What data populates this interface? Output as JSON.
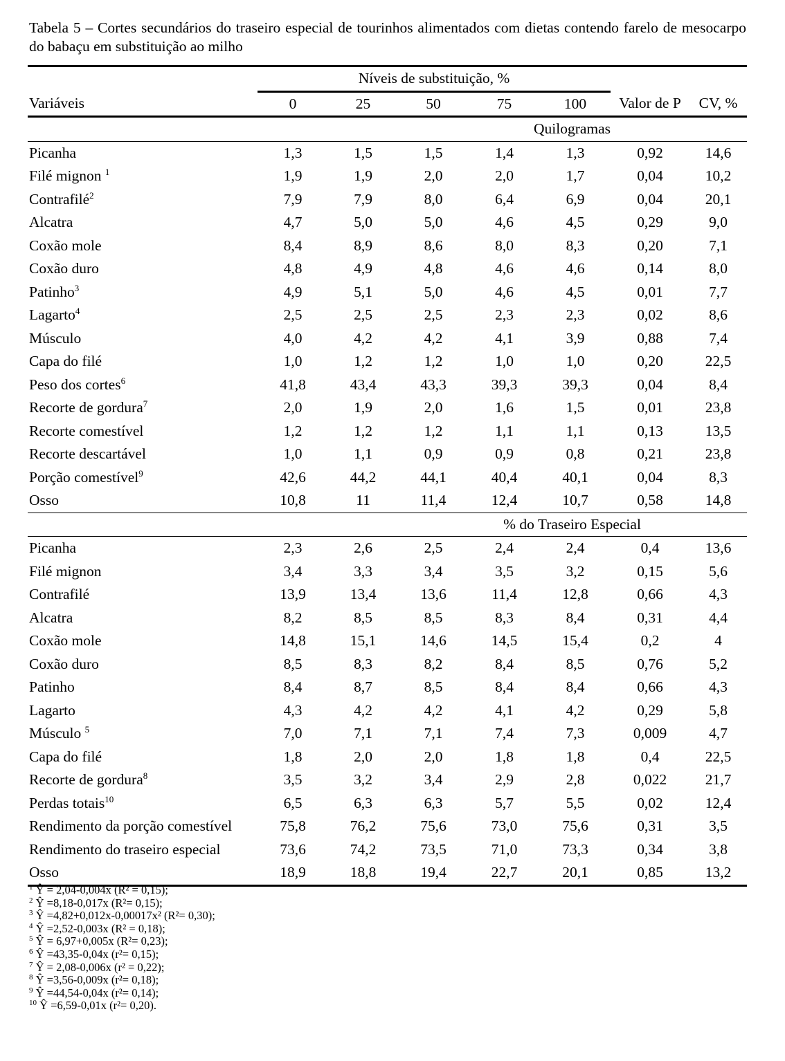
{
  "title": "Tabela 5 – Cortes secundários do traseiro especial de tourinhos alimentados com dietas contendo farelo de mesocarpo do babaçu em substituição ao milho",
  "header": {
    "group": "Níveis de substituição, %",
    "variables": "Variáveis",
    "levels": [
      "0",
      "25",
      "50",
      "75",
      "100"
    ],
    "p_value": "Valor de P",
    "cv": "CV, %"
  },
  "sections": [
    {
      "title": "Quilogramas",
      "rows": [
        {
          "label": "Picanha",
          "sup": "",
          "values": [
            "1,3",
            "1,5",
            "1,5",
            "1,4",
            "1,3",
            "0,92",
            "14,6"
          ]
        },
        {
          "label": "Filé mignon ",
          "sup": "1",
          "values": [
            "1,9",
            "1,9",
            "2,0",
            "2,0",
            "1,7",
            "0,04",
            "10,2"
          ]
        },
        {
          "label": "Contrafilé",
          "sup": "2",
          "values": [
            "7,9",
            "7,9",
            "8,0",
            "6,4",
            "6,9",
            "0,04",
            "20,1"
          ]
        },
        {
          "label": "Alcatra",
          "sup": "",
          "values": [
            "4,7",
            "5,0",
            "5,0",
            "4,6",
            "4,5",
            "0,29",
            "9,0"
          ]
        },
        {
          "label": "Coxão mole",
          "sup": "",
          "values": [
            "8,4",
            "8,9",
            "8,6",
            "8,0",
            "8,3",
            "0,20",
            "7,1"
          ]
        },
        {
          "label": "Coxão duro",
          "sup": "",
          "values": [
            "4,8",
            "4,9",
            "4,8",
            "4,6",
            "4,6",
            "0,14",
            "8,0"
          ]
        },
        {
          "label": "Patinho",
          "sup": "3",
          "values": [
            "4,9",
            "5,1",
            "5,0",
            "4,6",
            "4,5",
            "0,01",
            "7,7"
          ]
        },
        {
          "label": "Lagarto",
          "sup": "4",
          "values": [
            "2,5",
            "2,5",
            "2,5",
            "2,3",
            "2,3",
            "0,02",
            "8,6"
          ]
        },
        {
          "label": "Músculo",
          "sup": "",
          "values": [
            "4,0",
            "4,2",
            "4,2",
            "4,1",
            "3,9",
            "0,88",
            "7,4"
          ]
        },
        {
          "label": "Capa do filé",
          "sup": "",
          "values": [
            "1,0",
            "1,2",
            "1,2",
            "1,0",
            "1,0",
            "0,20",
            "22,5"
          ]
        },
        {
          "label": "Peso dos cortes",
          "sup": "6",
          "values": [
            "41,8",
            "43,4",
            "43,3",
            "39,3",
            "39,3",
            "0,04",
            "8,4"
          ]
        },
        {
          "label": "Recorte de gordura",
          "sup": "7",
          "values": [
            "2,0",
            "1,9",
            "2,0",
            "1,6",
            "1,5",
            "0,01",
            "23,8"
          ]
        },
        {
          "label": "Recorte comestível",
          "sup": "",
          "values": [
            "1,2",
            "1,2",
            "1,2",
            "1,1",
            "1,1",
            "0,13",
            "13,5"
          ]
        },
        {
          "label": "Recorte descartável",
          "sup": "",
          "values": [
            "1,0",
            "1,1",
            "0,9",
            "0,9",
            "0,8",
            "0,21",
            "23,8"
          ]
        },
        {
          "label": "Porção comestível",
          "sup": "9",
          "values": [
            "42,6",
            "44,2",
            "44,1",
            "40,4",
            "40,1",
            "0,04",
            "8,3"
          ]
        },
        {
          "label": "Osso",
          "sup": "",
          "values": [
            "10,8",
            "11",
            "11,4",
            "12,4",
            "10,7",
            "0,58",
            "14,8"
          ]
        }
      ]
    },
    {
      "title": "% do Traseiro Especial",
      "rows": [
        {
          "label": "Picanha",
          "sup": "",
          "values": [
            "2,3",
            "2,6",
            "2,5",
            "2,4",
            "2,4",
            "0,4",
            "13,6"
          ]
        },
        {
          "label": "Filé mignon",
          "sup": "",
          "values": [
            "3,4",
            "3,3",
            "3,4",
            "3,5",
            "3,2",
            "0,15",
            "5,6"
          ]
        },
        {
          "label": "Contrafilé",
          "sup": "",
          "values": [
            "13,9",
            "13,4",
            "13,6",
            "11,4",
            "12,8",
            "0,66",
            "4,3"
          ]
        },
        {
          "label": "Alcatra",
          "sup": "",
          "values": [
            "8,2",
            "8,5",
            "8,5",
            "8,3",
            "8,4",
            "0,31",
            "4,4"
          ]
        },
        {
          "label": "Coxão mole",
          "sup": "",
          "values": [
            "14,8",
            "15,1",
            "14,6",
            "14,5",
            "15,4",
            "0,2",
            "4"
          ]
        },
        {
          "label": "Coxão duro",
          "sup": "",
          "values": [
            "8,5",
            "8,3",
            "8,2",
            "8,4",
            "8,5",
            "0,76",
            "5,2"
          ]
        },
        {
          "label": "Patinho",
          "sup": "",
          "values": [
            "8,4",
            "8,7",
            "8,5",
            "8,4",
            "8,4",
            "0,66",
            "4,3"
          ]
        },
        {
          "label": "Lagarto",
          "sup": "",
          "values": [
            "4,3",
            "4,2",
            "4,2",
            "4,1",
            "4,2",
            "0,29",
            "5,8"
          ]
        },
        {
          "label": "Músculo ",
          "sup": "5",
          "values": [
            "7,0",
            "7,1",
            "7,1",
            "7,4",
            "7,3",
            "0,009",
            "4,7"
          ]
        },
        {
          "label": "Capa do filé",
          "sup": "",
          "values": [
            "1,8",
            "2,0",
            "2,0",
            "1,8",
            "1,8",
            "0,4",
            "22,5"
          ]
        },
        {
          "label": "Recorte de gordura",
          "sup": "8",
          "values": [
            "3,5",
            "3,2",
            "3,4",
            "2,9",
            "2,8",
            "0,022",
            "21,7"
          ]
        },
        {
          "label": "Perdas totais",
          "sup": "10",
          "values": [
            "6,5",
            "6,3",
            "6,3",
            "5,7",
            "5,5",
            "0,02",
            "12,4"
          ]
        },
        {
          "label": "Rendimento da porção comestível",
          "sup": "",
          "values": [
            "75,8",
            "76,2",
            "75,6",
            "73,0",
            "75,6",
            "0,31",
            "3,5"
          ]
        },
        {
          "label": "Rendimento do traseiro especial",
          "sup": "",
          "values": [
            "73,6",
            "74,2",
            "73,5",
            "71,0",
            "73,3",
            "0,34",
            "3,8"
          ]
        },
        {
          "label": "Osso",
          "sup": "",
          "values": [
            "18,9",
            "18,8",
            "19,4",
            "22,7",
            "20,1",
            "0,85",
            "13,2"
          ]
        }
      ]
    }
  ],
  "footnotes": [
    {
      "n": "1",
      "text": "Ŷ  = 2,04-0,004x (R² = 0,15);"
    },
    {
      "n": "2",
      "text": "Ŷ =8,18-0,017x (R²= 0,15);"
    },
    {
      "n": "3",
      "text": "Ŷ =4,82+0,012x-0,00017x² (R²= 0,30);"
    },
    {
      "n": "4",
      "text": "Ŷ =2,52-0,003x (R² = 0,18);"
    },
    {
      "n": "5",
      "text": "Ŷ = 6,97+0,005x (R²= 0,23);"
    },
    {
      "n": "6",
      "text": "Ŷ =43,35-0,04x (r²= 0,15);"
    },
    {
      "n": "7",
      "text": "Ŷ = 2,08-0,006x (r² = 0,22);"
    },
    {
      "n": "8",
      "text": "Ŷ =3,56-0,009x (r²= 0,18);"
    },
    {
      "n": "9",
      "text": "Ŷ =44,54-0,04x (r²= 0,14);"
    },
    {
      "n": "10",
      "text": "Ŷ =6,59-0,01x (r²= 0,20)."
    }
  ]
}
